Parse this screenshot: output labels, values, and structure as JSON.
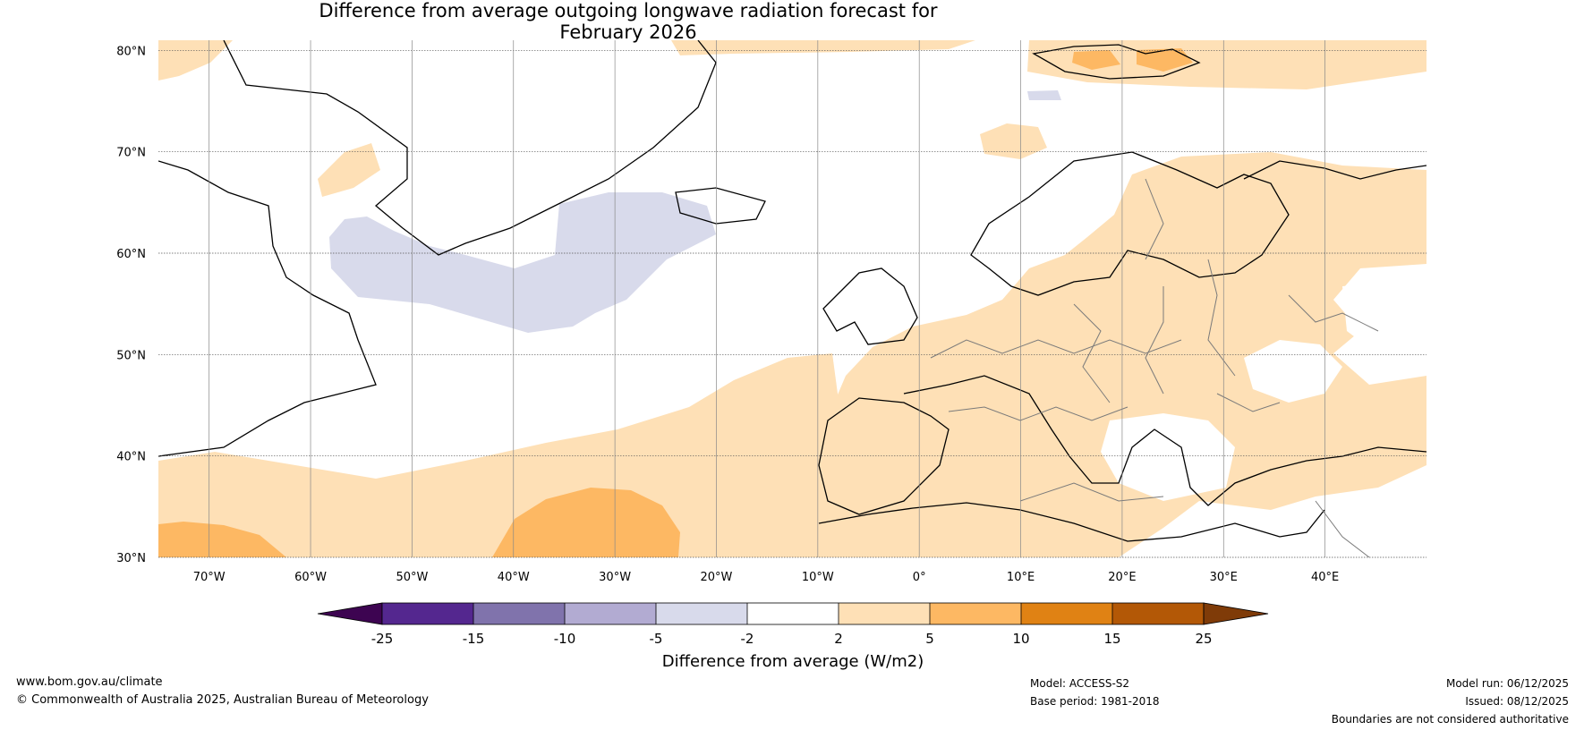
{
  "title": {
    "line1": "Difference from average outgoing longwave radiation forecast for",
    "line2": "February 2026"
  },
  "map": {
    "lat_labels": [
      "80°N",
      "70°N",
      "60°N",
      "50°N",
      "40°N",
      "30°N"
    ],
    "lon_labels": [
      "70°W",
      "60°W",
      "50°W",
      "40°W",
      "30°W",
      "20°W",
      "10°W",
      "0°",
      "10°E",
      "20°E",
      "30°E",
      "40°E"
    ],
    "lat_values": [
      80,
      70,
      60,
      50,
      40,
      30
    ],
    "lon_values": [
      -70,
      -60,
      -50,
      -40,
      -30,
      -20,
      -10,
      0,
      10,
      20,
      30,
      40
    ],
    "lat_range": [
      30,
      81
    ],
    "lon_range": [
      -75,
      50
    ]
  },
  "colorbar": {
    "ticks": [
      "-25",
      "-15",
      "-10",
      "-5",
      "-2",
      "2",
      "5",
      "10",
      "15",
      "25"
    ],
    "colors": {
      "under": "#3d0451",
      "c1": "#54278f",
      "c2": "#8073ac",
      "c3": "#b2abd2",
      "c4": "#d8daeb",
      "c5": "#ffffff",
      "c6": "#fee0b6",
      "c7": "#fdb863",
      "c8": "#e08214",
      "c9": "#b35806",
      "over": "#7f3b08"
    },
    "label": "Difference from average (W/m2)"
  },
  "footer": {
    "website": "www.bom.gov.au/climate",
    "copyright": "© Commonwealth of Australia 2025, Australian Bureau of Meteorology",
    "model": "Model: ACCESS-S2",
    "base_period": "Base period: 1981-2018",
    "model_run": "Model run: 06/12/2025",
    "issued": "Issued: 08/12/2025",
    "boundaries": "Boundaries are not considered authoritative"
  }
}
